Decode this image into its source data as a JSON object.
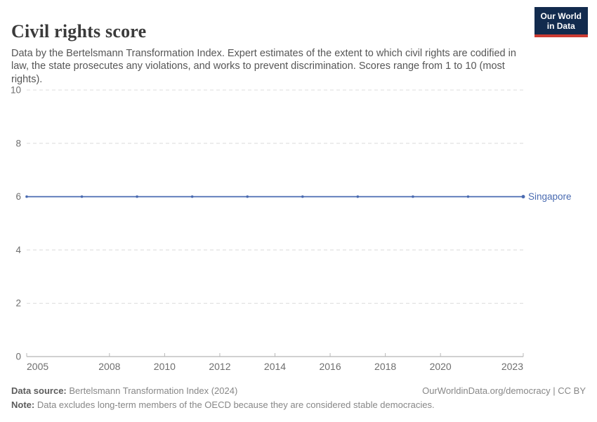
{
  "header": {
    "title": "Civil rights score",
    "subtitle": "Data by the Bertelsmann Transformation Index. Expert estimates of the extent to which civil rights are codified in law, the state prosecutes any violations, and works to prevent discrimination. Scores range from 1 to 10 (most rights).",
    "logo": {
      "line1": "Our World",
      "line2": "in Data",
      "bg_color": "#122b4e",
      "accent_color": "#cc3b33"
    }
  },
  "chart_data": {
    "type": "line",
    "title": "Civil rights score",
    "series": [
      {
        "name": "Singapore",
        "color": "#4a6bb1",
        "x": [
          2005,
          2007,
          2009,
          2011,
          2013,
          2015,
          2017,
          2019,
          2021,
          2023
        ],
        "values": [
          6,
          6,
          6,
          6,
          6,
          6,
          6,
          6,
          6,
          6
        ]
      }
    ],
    "x_ticks": [
      2005,
      2008,
      2010,
      2012,
      2014,
      2016,
      2018,
      2020,
      2023
    ],
    "y_ticks": [
      0,
      2,
      4,
      6,
      8,
      10
    ],
    "xlim": [
      2005,
      2023
    ],
    "ylim": [
      0,
      10
    ],
    "grid": "horizontal-dashed",
    "legend_position": "end-of-line",
    "colors": {
      "grid": "#dcdcdc",
      "axis": "#a3a3a3",
      "tick": "#b8b8b8",
      "tick_label": "#6e6e6e"
    }
  },
  "footer": {
    "source_label": "Data source:",
    "source_text": "Bertelsmann Transformation Index (2024)",
    "credit": "OurWorldinData.org/democracy | CC BY",
    "note_label": "Note:",
    "note_text": "Data excludes long-term members of the OECD because they are considered stable democracies."
  }
}
